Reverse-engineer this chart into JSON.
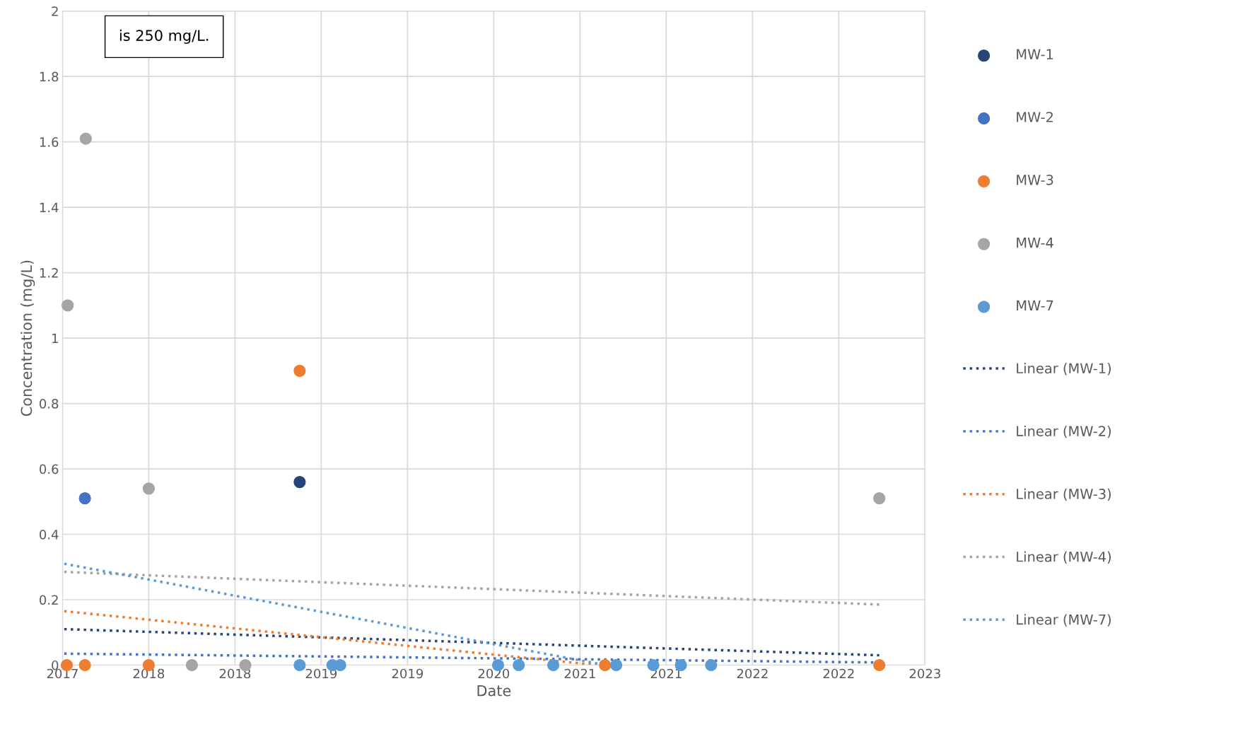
{
  "chart_data": {
    "type": "scatter",
    "xlabel": "Date",
    "ylabel": "Concentration (mg/L)",
    "annotations": [
      "is 250 mg/L."
    ],
    "xlim": [
      "2017-09-22",
      "2023-03-15"
    ],
    "xticks": [
      {
        "value": "2017-09-22",
        "label": "2017"
      },
      {
        "value": "2018-04-10",
        "label": "2018"
      },
      {
        "value": "2018-10-27",
        "label": "2018"
      },
      {
        "value": "2019-05-15",
        "label": "2019"
      },
      {
        "value": "2019-12-01",
        "label": "2019"
      },
      {
        "value": "2020-06-18",
        "label": "2020"
      },
      {
        "value": "2021-01-04",
        "label": "2021"
      },
      {
        "value": "2021-07-23",
        "label": "2021"
      },
      {
        "value": "2022-02-08",
        "label": "2022"
      },
      {
        "value": "2022-08-27",
        "label": "2022"
      },
      {
        "value": "2023-03-15",
        "label": "2023"
      }
    ],
    "ylim": [
      0,
      2
    ],
    "yticks": [
      0,
      0.2,
      0.4,
      0.6,
      0.8,
      1,
      1.2,
      1.4,
      1.6,
      1.8,
      2
    ],
    "grid": true,
    "legend": "right",
    "series": [
      {
        "name": "MW-1",
        "marker": "circle",
        "color": "#264478",
        "x": [
          "2019-03-26"
        ],
        "values": [
          0.56
        ]
      },
      {
        "name": "MW-2",
        "marker": "circle",
        "color": "#4472c4",
        "x": [
          "2017-11-13"
        ],
        "values": [
          0.51
        ]
      },
      {
        "name": "MW-3",
        "marker": "circle",
        "color": "#ed7d31",
        "x": [
          "2017-10-02",
          "2017-11-13",
          "2018-04-10",
          "2019-03-26",
          "2021-03-03",
          "2022-11-29"
        ],
        "values": [
          0,
          0,
          0,
          0.9,
          0,
          0
        ]
      },
      {
        "name": "MW-4",
        "marker": "circle",
        "color": "#a5a5a5",
        "x": [
          "2017-10-04",
          "2017-11-15",
          "2018-04-10",
          "2018-07-19",
          "2018-11-20",
          "2022-11-29"
        ],
        "values": [
          1.1,
          1.61,
          0.54,
          0,
          0,
          0.51
        ]
      },
      {
        "name": "MW-7",
        "marker": "circle",
        "color": "#5b9bd5",
        "x": [
          "2019-03-26",
          "2019-06-10",
          "2019-06-28",
          "2020-06-28",
          "2020-08-15",
          "2020-11-03",
          "2021-03-29",
          "2021-06-23",
          "2021-08-26",
          "2021-11-04"
        ],
        "values": [
          0,
          0,
          0,
          0,
          0,
          0,
          0,
          0,
          0,
          0
        ]
      },
      {
        "name": "Linear (MW-1)",
        "type": "line",
        "line_style": "dotted",
        "color": "#264478",
        "x": [
          "2017-09-26",
          "2022-11-29"
        ],
        "values": [
          0.11,
          0.03
        ]
      },
      {
        "name": "Linear (MW-2)",
        "type": "line",
        "line_style": "dotted",
        "color": "#4472c4",
        "x": [
          "2017-09-26",
          "2022-11-29"
        ],
        "values": [
          0.035,
          0.008
        ]
      },
      {
        "name": "Linear (MW-3)",
        "type": "line",
        "line_style": "dotted",
        "color": "#ed7d31",
        "x": [
          "2017-09-26",
          "2021-02-13"
        ],
        "values": [
          0.165,
          0
        ]
      },
      {
        "name": "Linear (MW-4)",
        "type": "line",
        "line_style": "dotted",
        "color": "#a5a5a5",
        "x": [
          "2017-09-26",
          "2022-11-29"
        ],
        "values": [
          0.285,
          0.185
        ]
      },
      {
        "name": "Linear (MW-7)",
        "type": "line",
        "line_style": "dotted",
        "color": "#5b9bd5",
        "x": [
          "2017-09-26",
          "2021-03-05"
        ],
        "values": [
          0.31,
          0
        ]
      }
    ]
  }
}
